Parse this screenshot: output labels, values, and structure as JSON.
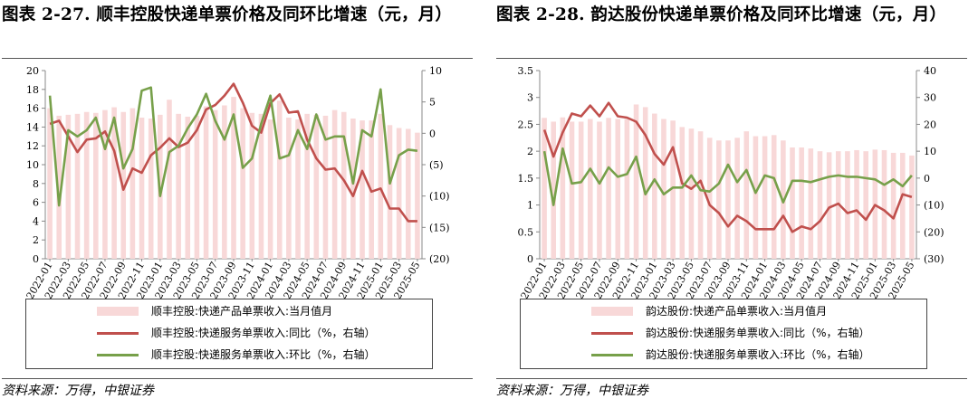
{
  "left": {
    "title": "图表 2-27. 顺丰控股快递单票价格及同环比增速（元，月）",
    "source": "资料来源：万得，中银证券",
    "legend": [
      "顺丰控股:快递产品单票收入:当月值月",
      "顺丰控股:快递服务单票收入:同比（%，右轴）",
      "顺丰控股:快递服务单票收入:环比（%，右轴）"
    ],
    "colors": {
      "bar": "#f8d8d8",
      "yoy": "#c0504d",
      "mom": "#77a04a"
    },
    "left_ticks": [
      "0",
      "2",
      "4",
      "6",
      "8",
      "10",
      "12",
      "14",
      "16",
      "18",
      "20"
    ],
    "right_ticks": [
      "(20)",
      "(15)",
      "(10)",
      "(5)",
      "0",
      "5",
      "10"
    ],
    "x_ticks": [
      "2022-01",
      "2022-03",
      "2022-05",
      "2022-07",
      "2022-09",
      "2022-11",
      "2023-01",
      "2023-03",
      "2023-05",
      "2023-07",
      "2023-09",
      "2023-11",
      "2024-01",
      "2024-03",
      "2024-05",
      "2024-07",
      "2024-09",
      "2024-11",
      "2025-01",
      "2025-03",
      "2025-05"
    ]
  },
  "right": {
    "title": "图表 2-28. 韵达股份快递单票价格及同环比增速（元，月）",
    "source": "资料来源：万得，中银证券",
    "legend": [
      "韵达股份:快递产品单票收入:当月值月",
      "韵达股份:快递服务单票收入:同比（%，右轴）",
      "韵达股份:快递服务单票收入:环比（%，右轴）"
    ],
    "colors": {
      "bar": "#f8d8d8",
      "yoy": "#c0504d",
      "mom": "#77a04a"
    },
    "left_ticks": [
      "0",
      "0.5",
      "1",
      "1.5",
      "2",
      "2.5",
      "3",
      "3.5"
    ],
    "right_ticks": [
      "(30)",
      "(20)",
      "(10)",
      "0",
      "10",
      "20",
      "30",
      "40"
    ],
    "x_ticks": [
      "2022-01",
      "2022-03",
      "2022-05",
      "2022-07",
      "2022-09",
      "2022-11",
      "2023-01",
      "2023-03",
      "2023-05",
      "2023-07",
      "2023-09",
      "2023-11",
      "2024-01",
      "2024-03",
      "2024-05",
      "2024-07",
      "2024-09",
      "2024-11",
      "2025-01",
      "2025-03",
      "2025-05"
    ]
  },
  "chart_data": [
    {
      "type": "bar",
      "x": [
        "2022-01",
        "2022-02",
        "2022-03",
        "2022-04",
        "2022-05",
        "2022-06",
        "2022-07",
        "2022-08",
        "2022-09",
        "2022-10",
        "2022-11",
        "2022-12",
        "2023-01",
        "2023-02",
        "2023-03",
        "2023-04",
        "2023-05",
        "2023-06",
        "2023-07",
        "2023-08",
        "2023-09",
        "2023-10",
        "2023-11",
        "2023-12",
        "2024-01",
        "2024-02",
        "2024-03",
        "2024-04",
        "2024-05",
        "2024-06",
        "2024-07",
        "2024-08",
        "2024-09",
        "2024-10",
        "2024-11",
        "2024-12",
        "2025-01",
        "2025-02",
        "2025-03",
        "2025-04",
        "2025-05"
      ],
      "left_ylim": [
        0,
        20
      ],
      "right_ylim": [
        -20,
        10
      ],
      "series": [
        {
          "name": "顺丰控股:快递产品单票收入:当月值月",
          "axis": "left",
          "kind": "bar",
          "values": [
            16.0,
            15.2,
            15.3,
            15.4,
            15.6,
            15.5,
            15.8,
            16.1,
            15.6,
            16.0,
            15.0,
            14.9,
            15.3,
            16.9,
            15.4,
            15.1,
            15.2,
            16.2,
            15.8,
            16.3,
            17.2,
            16.0,
            15.5,
            15.4,
            14.8,
            16.8,
            15.0,
            14.8,
            15.4,
            15.3,
            15.2,
            15.8,
            15.6,
            14.9,
            14.7,
            14.7,
            15.4,
            14.2,
            13.9,
            13.8,
            13.4
          ]
        },
        {
          "name": "顺丰控股:快递服务单票收入:同比（%，右轴）",
          "axis": "right",
          "kind": "line",
          "values": [
            1.5,
            2.0,
            -0.5,
            -3.0,
            -1.0,
            -0.8,
            0.3,
            -2.8,
            -9.0,
            -5.6,
            -6.3,
            -3.5,
            -2.3,
            -0.8,
            -2.2,
            -1.5,
            0.5,
            3.8,
            4.5,
            6.0,
            7.9,
            4.9,
            1.2,
            0.1,
            4.8,
            6.2,
            3.3,
            3.5,
            -1.0,
            -4.0,
            -5.8,
            -5.6,
            -7.5,
            -10.0,
            -6.0,
            -9.3,
            -8.8,
            -12.0,
            -12.0,
            -14.0,
            -14.0
          ]
        },
        {
          "name": "顺丰控股:快递服务单票收入:环比（%，右轴）",
          "axis": "right",
          "kind": "line",
          "values": [
            6.0,
            -11.5,
            0.5,
            -0.5,
            0.5,
            2.5,
            -2.5,
            2.5,
            -5.6,
            -2.5,
            6.8,
            7.3,
            -10.0,
            -3.0,
            -2.0,
            0.8,
            3.0,
            6.3,
            2.0,
            -1.0,
            3.0,
            -5.5,
            -4.0,
            1.5,
            6.0,
            -4.0,
            -3.5,
            0.5,
            -2.5,
            3.0,
            -1.0,
            -0.5,
            -0.5,
            -8.0,
            0.5,
            -0.5,
            7.0,
            -8.0,
            -3.5,
            -2.6,
            -2.8
          ]
        }
      ]
    },
    {
      "type": "bar",
      "x": [
        "2022-01",
        "2022-02",
        "2022-03",
        "2022-04",
        "2022-05",
        "2022-06",
        "2022-07",
        "2022-08",
        "2022-09",
        "2022-10",
        "2022-11",
        "2022-12",
        "2023-01",
        "2023-02",
        "2023-03",
        "2023-04",
        "2023-05",
        "2023-06",
        "2023-07",
        "2023-08",
        "2023-09",
        "2023-10",
        "2023-11",
        "2023-12",
        "2024-01",
        "2024-02",
        "2024-03",
        "2024-04",
        "2024-05",
        "2024-06",
        "2024-07",
        "2024-08",
        "2024-09",
        "2024-10",
        "2024-11",
        "2024-12",
        "2025-01",
        "2025-02",
        "2025-03",
        "2025-04",
        "2025-05"
      ],
      "left_ylim": [
        0,
        3.5
      ],
      "right_ylim": [
        -30,
        40
      ],
      "series": [
        {
          "name": "韵达股份:快递产品单票收入:当月值月",
          "axis": "left",
          "kind": "bar",
          "values": [
            2.62,
            2.55,
            2.63,
            2.55,
            2.55,
            2.6,
            2.55,
            2.62,
            2.6,
            2.6,
            2.87,
            2.82,
            2.7,
            2.6,
            2.57,
            2.45,
            2.42,
            2.37,
            2.25,
            2.2,
            2.2,
            2.25,
            2.37,
            2.28,
            2.28,
            2.3,
            2.2,
            2.07,
            2.07,
            2.05,
            2.0,
            1.98,
            2.0,
            2.0,
            2.02,
            2.0,
            2.03,
            2.02,
            1.97,
            1.97,
            1.92
          ]
        },
        {
          "name": "韵达股份:快递服务单票收入:同比（%，右轴）",
          "axis": "right",
          "kind": "line",
          "values": [
            18.0,
            8.0,
            17.0,
            24.0,
            23.0,
            27.0,
            23.0,
            28.0,
            23.0,
            22.5,
            21.0,
            16.0,
            9.0,
            5.0,
            11.5,
            -2.0,
            -4.0,
            -1.0,
            -10.0,
            -13.0,
            -18.0,
            -14.0,
            -16.0,
            -19.0,
            -19.0,
            -19.0,
            -14.0,
            -20.0,
            -18.0,
            -19.0,
            -16.0,
            -11.0,
            -9.5,
            -13.0,
            -12.0,
            -15.5,
            -10.0,
            -12.0,
            -15.0,
            -6.0,
            -7.0
          ]
        },
        {
          "name": "韵达股份:快递服务单票收入:环比（%，右轴）",
          "axis": "right",
          "kind": "line",
          "values": [
            10.0,
            -10.0,
            11.0,
            -2.0,
            -1.5,
            3.5,
            -2.0,
            4.0,
            0.5,
            1.5,
            8.0,
            -6.0,
            -0.5,
            -6.0,
            -3.5,
            -3.5,
            1.0,
            -4.5,
            -5.0,
            -2.0,
            5.0,
            -1.5,
            3.0,
            -5.5,
            1.0,
            0.0,
            -9.0,
            -1.0,
            -1.0,
            -1.5,
            -0.5,
            0.5,
            1.0,
            0.5,
            0.5,
            0.0,
            -0.5,
            -2.5,
            -0.5,
            -3.0,
            1.0
          ]
        }
      ]
    }
  ]
}
